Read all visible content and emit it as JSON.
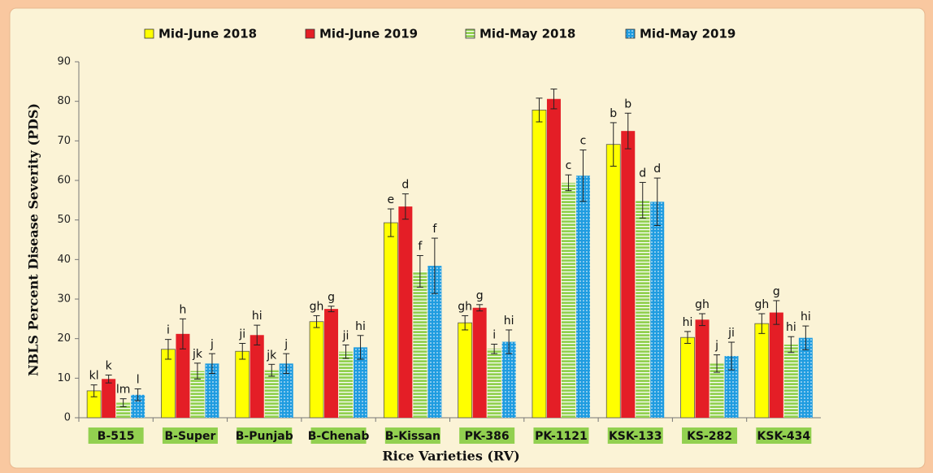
{
  "chart_data": {
    "type": "bar",
    "x_label": "Rice Varieties (RV)",
    "y_label": "NBLS Percent Disease Severity (PDS)",
    "categories": [
      "B-515",
      "B-Super",
      "B-Punjab",
      "B-Chenab",
      "B-Kissan",
      "PK-386",
      "PK-1121",
      "KSK-133",
      "KS-282",
      "KSK-434"
    ],
    "ylim": [
      0,
      90
    ],
    "yticks": [
      0,
      10,
      20,
      30,
      40,
      50,
      60,
      70,
      80,
      90
    ],
    "grid": false,
    "series": [
      {
        "name": "Mid-June 2018",
        "color": "#ffff00",
        "pattern": "solid",
        "values": [
          6.8,
          17.3,
          16.8,
          24.3,
          49.3,
          24.0,
          77.8,
          69.1,
          20.3,
          23.8
        ],
        "errors": [
          1.5,
          2.5,
          2.0,
          1.5,
          3.5,
          1.8,
          3.0,
          5.5,
          1.5,
          2.5
        ],
        "value_labels": [
          "kl",
          "i",
          "ji",
          "gh",
          "e",
          "gh",
          null,
          "b",
          "hi",
          "gh"
        ]
      },
      {
        "name": "Mid-June 2019",
        "color": "#e41e26",
        "pattern": "solid",
        "values": [
          9.8,
          21.2,
          20.9,
          27.5,
          53.4,
          27.8,
          80.6,
          72.5,
          24.8,
          26.6
        ],
        "errors": [
          1.0,
          3.8,
          2.5,
          0.7,
          3.2,
          0.8,
          2.5,
          4.5,
          1.5,
          3.0
        ],
        "value_labels": [
          "k",
          "h",
          "hi",
          "g",
          "d",
          "g",
          null,
          "b",
          "gh",
          "g"
        ]
      },
      {
        "name": "Mid-May 2018",
        "color": "#92d050",
        "pattern": "stripes",
        "values": [
          3.8,
          11.8,
          12.0,
          16.7,
          37.0,
          17.4,
          59.4,
          55.0,
          13.7,
          18.5
        ],
        "errors": [
          1.0,
          2.0,
          1.5,
          1.7,
          4.0,
          1.2,
          2.0,
          4.5,
          2.2,
          2.0
        ],
        "value_labels": [
          "lm",
          "jk",
          "jk",
          "ji",
          "f",
          "i",
          "c",
          "d",
          "j",
          "hi"
        ]
      },
      {
        "name": "Mid-May 2019",
        "color": "#1f9ce0",
        "pattern": "dots",
        "values": [
          5.8,
          13.7,
          13.7,
          17.8,
          38.4,
          19.2,
          61.2,
          54.6,
          15.6,
          20.2
        ],
        "errors": [
          1.5,
          2.5,
          2.5,
          3.0,
          7.0,
          3.0,
          6.5,
          6.0,
          3.5,
          3.0
        ],
        "value_labels": [
          "l",
          "j",
          "j",
          "hi",
          "f",
          "hi",
          "c",
          "d",
          "ji",
          "hi"
        ]
      }
    ]
  }
}
